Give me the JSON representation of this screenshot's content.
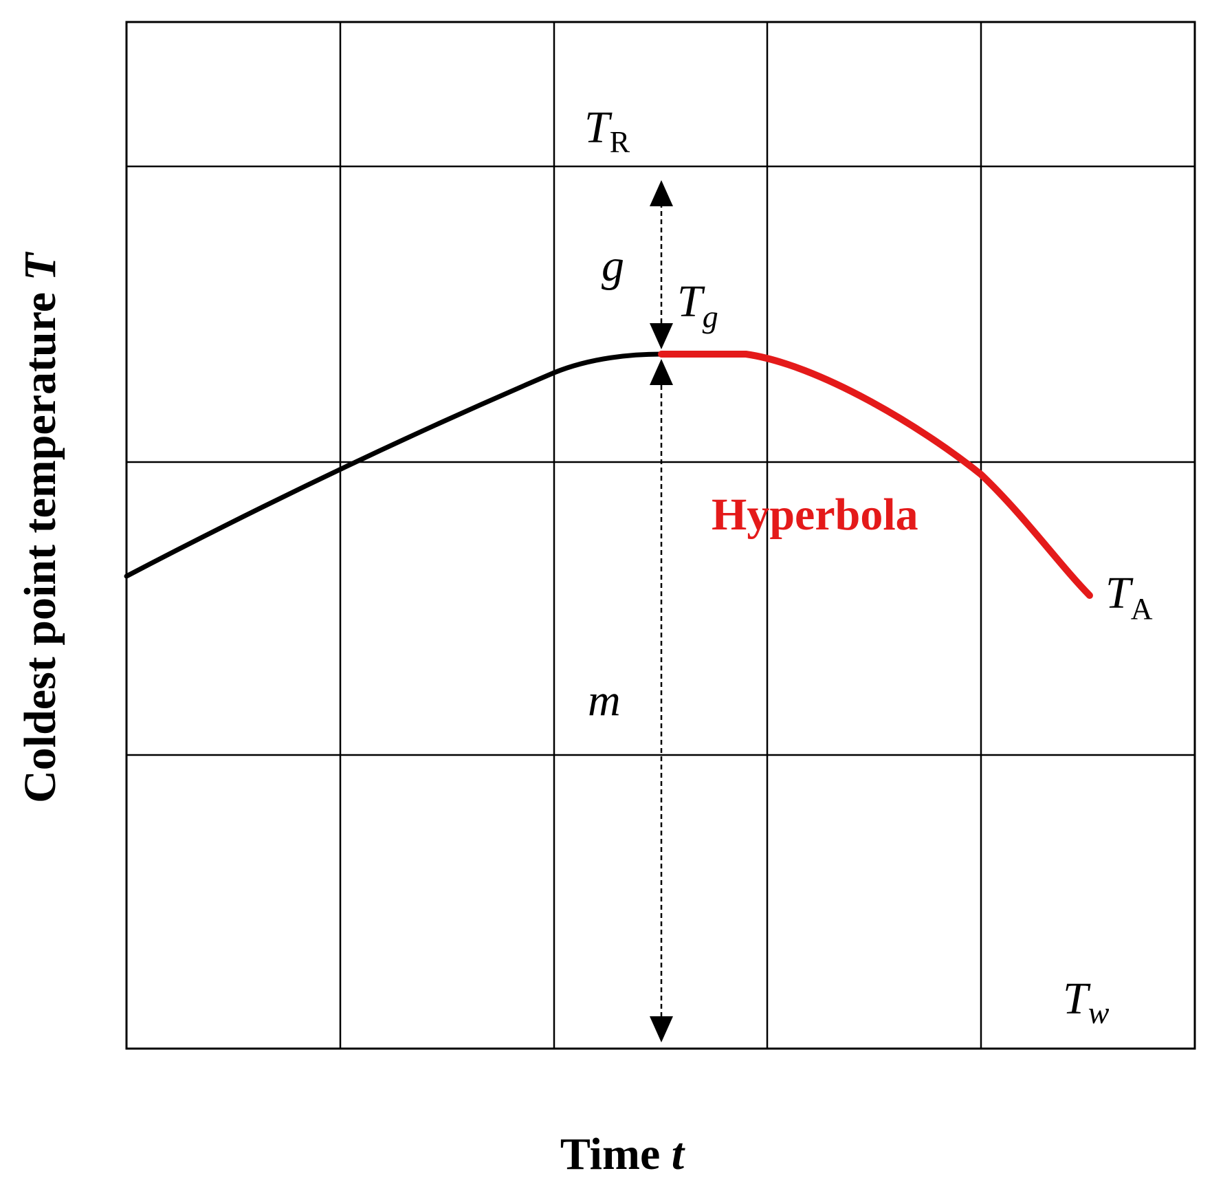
{
  "figure": {
    "x_axis": {
      "title": "Time",
      "variable": "t"
    },
    "y_axis": {
      "title": "Coldest point temperature",
      "variable": "T"
    },
    "symbols": {
      "T_R": {
        "base": "T",
        "sub": "R"
      },
      "T_g": {
        "base": "T",
        "sub": "g"
      },
      "T_A": {
        "base": "T",
        "sub": "A"
      },
      "T_w": {
        "base": "T",
        "sub": "w"
      },
      "g": "g",
      "m": "m"
    },
    "curve_label": "Hyperbola",
    "colors": {
      "curve_main": "#000000",
      "curve_hyperbola": "#e41a1a",
      "grid": "#000000",
      "arrows": "#000000"
    }
  }
}
